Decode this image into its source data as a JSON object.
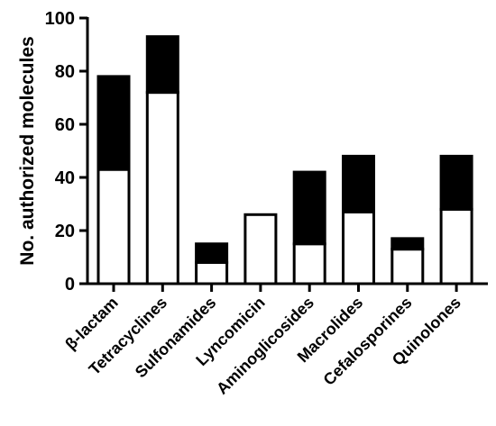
{
  "chart_data": {
    "type": "bar",
    "stacked": true,
    "ylabel": "No. authorized molecules",
    "xlabel": "",
    "title": "",
    "ylim": [
      0,
      100
    ],
    "yticks": [
      0,
      20,
      40,
      60,
      80,
      100
    ],
    "grid": false,
    "categories": [
      "β-lactam",
      "Tetracyclines",
      "Sulfonamides",
      "Lyncomicin",
      "Aminoglicosides",
      "Macrolides",
      "Cefalosporines",
      "Quinolones"
    ],
    "series": [
      {
        "values": [
          43,
          72,
          8,
          26,
          15,
          27,
          13,
          28
        ],
        "color": "#ffffff"
      },
      {
        "values": [
          35,
          21,
          7,
          0,
          27,
          21,
          4,
          20
        ],
        "color": "#000000"
      }
    ]
  }
}
